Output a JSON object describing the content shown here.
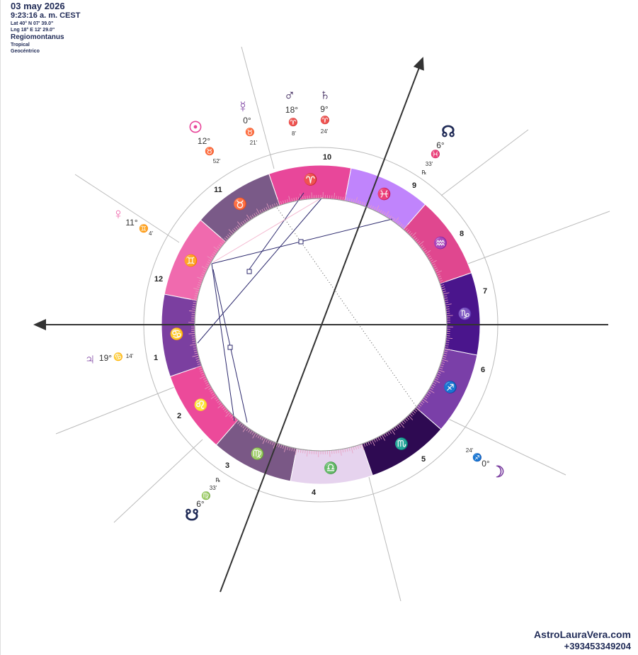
{
  "header": {
    "date": "03 may 2026",
    "time": "9:23:16 a. m. CEST",
    "lat": "Lat 40° N 07' 39.0\"",
    "lng": "Lng 18° E 12' 29.0\"",
    "house_system": "Regiomontanus",
    "zodiac": "Tropical",
    "perspective": "Geocéntrico"
  },
  "signs": [
    "♈",
    "♉",
    "♊",
    "♋",
    "♌",
    "♍",
    "♎",
    "♏",
    "♐",
    "♑",
    "♒",
    "♓"
  ],
  "houses": [
    "1",
    "2",
    "3",
    "4",
    "5",
    "6",
    "7",
    "8",
    "9",
    "10",
    "11",
    "12"
  ],
  "planets": [
    {
      "glyph": "☉",
      "degree": "12°",
      "sign": "♉",
      "minutes": "52'"
    },
    {
      "glyph": "☿",
      "degree": "0°",
      "sign": "♉",
      "minutes": "21'"
    },
    {
      "glyph": "♂",
      "degree": "18°",
      "sign": "♈",
      "minutes": "8'"
    },
    {
      "glyph": "♄",
      "degree": "9°",
      "sign": "♈",
      "minutes": "24'"
    },
    {
      "glyph": "☊",
      "degree": "6°",
      "sign": "♓",
      "minutes": "33'",
      "retro": "℞"
    },
    {
      "glyph": "♀",
      "degree": "11°",
      "sign": "♊",
      "minutes": "4'"
    },
    {
      "glyph": "♃",
      "degree": "19°",
      "sign": "♋",
      "minutes": "14'"
    },
    {
      "glyph": "☋",
      "degree": "6°",
      "sign": "♍",
      "minutes": "33'",
      "retro": "℞"
    },
    {
      "glyph": "☽",
      "degree": "0°",
      "sign": "♐",
      "minutes": "24'"
    }
  ],
  "footer": {
    "site": "AstroLauraVera.com",
    "phone": "+393453349204"
  }
}
